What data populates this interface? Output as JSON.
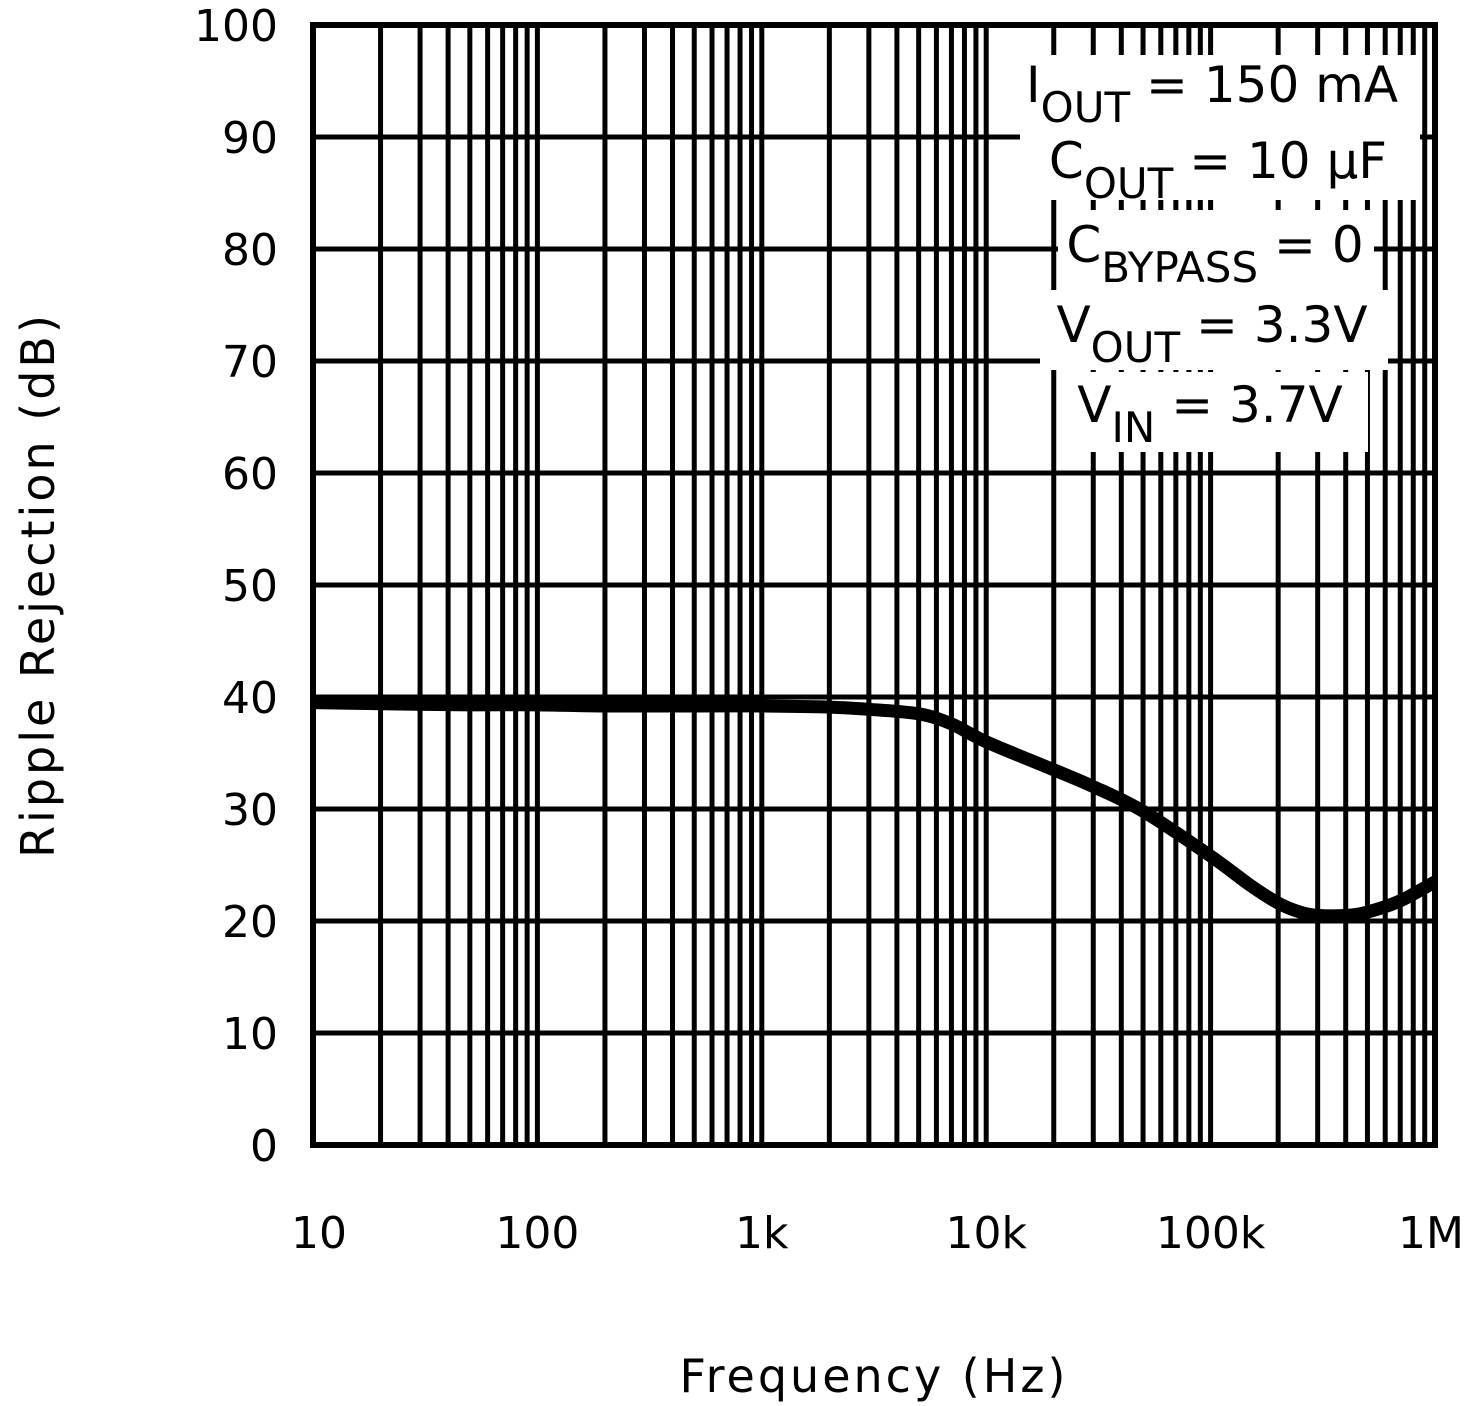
{
  "chart_data": {
    "type": "line",
    "title": "",
    "xlabel": "Frequency (Hz)",
    "ylabel": "Ripple Rejection (dB)",
    "xscale": "log",
    "xlim": [
      10,
      1000000
    ],
    "ylim": [
      0,
      100
    ],
    "grid": true,
    "x_tick_values": [
      10,
      100,
      1000,
      10000,
      100000,
      1000000
    ],
    "x_tick_labels": [
      "10",
      "100",
      "1k",
      "10k",
      "100k",
      "1M"
    ],
    "y_tick_values": [
      0,
      10,
      20,
      30,
      40,
      50,
      60,
      70,
      80,
      90,
      100
    ],
    "y_tick_labels": [
      "0",
      "10",
      "20",
      "30",
      "40",
      "50",
      "60",
      "70",
      "80",
      "90",
      "100"
    ],
    "annotations": [
      {
        "main": "I",
        "sub": "OUT",
        "rest": " = 150 mA"
      },
      {
        "main": "C",
        "sub": "OUT",
        "rest": " = 10 µF"
      },
      {
        "main": "C",
        "sub": "BYPASS",
        "rest": " = 0"
      },
      {
        "main": "V",
        "sub": "OUT",
        "rest": " = 3.3V"
      },
      {
        "main": "V",
        "sub": "IN",
        "rest": " = 3.7V"
      }
    ],
    "series": [
      {
        "name": "Ripple Rejection",
        "x": [
          10,
          20,
          50,
          100,
          200,
          500,
          1000,
          2000,
          3000,
          5000,
          7000,
          10000,
          20000,
          30000,
          50000,
          100000,
          150000,
          200000,
          250000,
          300000,
          400000,
          500000,
          700000,
          1000000
        ],
        "values": [
          39.5,
          39.4,
          39.3,
          39.3,
          39.2,
          39.2,
          39.2,
          39.1,
          38.9,
          38.5,
          37.6,
          36.0,
          33.5,
          32.0,
          29.8,
          25.8,
          23.2,
          21.6,
          20.8,
          20.5,
          20.5,
          20.8,
          21.8,
          23.5
        ]
      }
    ]
  }
}
